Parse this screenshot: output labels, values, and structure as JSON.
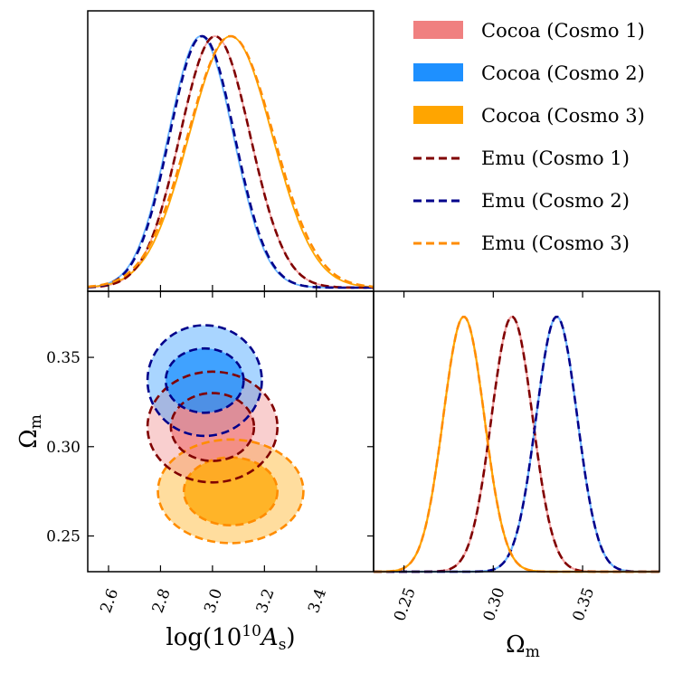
{
  "colors": {
    "cosmo1_fill": "#f08080",
    "cosmo2_fill": "#1e90ff",
    "cosmo3_fill": "#ffa500",
    "cosmo1_line": "#800000",
    "cosmo2_line": "#00008b",
    "cosmo3_line": "#ff8c00",
    "cosmo1_solid": "#f4a3a3",
    "cosmo2_solid": "#6cb4ff",
    "cosmo3_solid": "#ffa500"
  },
  "legend": [
    {
      "label": "Cocoa (Cosmo 1)",
      "kind": "patch",
      "color": "#f08080"
    },
    {
      "label": "Cocoa (Cosmo 2)",
      "kind": "patch",
      "color": "#1e90ff"
    },
    {
      "label": "Cocoa (Cosmo 3)",
      "kind": "patch",
      "color": "#ffa500"
    },
    {
      "label": "Emu (Cosmo 1)",
      "kind": "dashed",
      "color": "#800000"
    },
    {
      "label": "Emu (Cosmo 2)",
      "kind": "dashed",
      "color": "#00008b"
    },
    {
      "label": "Emu (Cosmo 3)",
      "kind": "dashed",
      "color": "#ff8c00"
    }
  ],
  "chart_data": [
    {
      "type": "line",
      "panel": "1D marginal of log(10^10 A_s)",
      "xlim": [
        2.52,
        3.62
      ],
      "series": [
        {
          "name": "Cocoa (Cosmo 1)",
          "mean": 3.01,
          "sigma": 0.135
        },
        {
          "name": "Cocoa (Cosmo 2)",
          "mean": 2.955,
          "sigma": 0.125
        },
        {
          "name": "Cocoa (Cosmo 3)",
          "mean": 3.07,
          "sigma": 0.16
        },
        {
          "name": "Emu (Cosmo 1)",
          "mean": 3.01,
          "sigma": 0.135
        },
        {
          "name": "Emu (Cosmo 2)",
          "mean": 2.96,
          "sigma": 0.125
        },
        {
          "name": "Emu (Cosmo 3)",
          "mean": 3.07,
          "sigma": 0.165
        }
      ]
    },
    {
      "type": "area",
      "panel": "2D contours Omega_m vs log(10^10 A_s)",
      "xlabel": "log(10^{10}A_s)",
      "ylabel": "Ω_m",
      "xlim": [
        2.52,
        3.62
      ],
      "ylim": [
        0.23,
        0.387
      ],
      "xticks": [
        "2.6",
        "2.8",
        "3.0",
        "3.2",
        "3.4"
      ],
      "yticks": [
        "0.25",
        "0.30",
        "0.35"
      ],
      "contours": [
        {
          "name": "Cosmo 1",
          "center": [
            3.0,
            0.311
          ],
          "inner": [
            0.16,
            0.019
          ],
          "outer": [
            0.25,
            0.031
          ]
        },
        {
          "name": "Cosmo 2",
          "center": [
            2.97,
            0.337
          ],
          "inner": [
            0.15,
            0.018
          ],
          "outer": [
            0.22,
            0.031
          ]
        },
        {
          "name": "Cosmo 3",
          "center": [
            3.07,
            0.275
          ],
          "inner": [
            0.18,
            0.019
          ],
          "outer": [
            0.28,
            0.029
          ]
        }
      ]
    },
    {
      "type": "line",
      "panel": "1D marginal of Omega_m",
      "xlabel": "Ω_m",
      "xlim": [
        0.233,
        0.393
      ],
      "xticks": [
        "0.25",
        "0.30",
        "0.35"
      ],
      "series": [
        {
          "name": "Cocoa (Cosmo 1)",
          "mean": 0.3105,
          "sigma": 0.0115
        },
        {
          "name": "Cocoa (Cosmo 2)",
          "mean": 0.3355,
          "sigma": 0.0115
        },
        {
          "name": "Cocoa (Cosmo 3)",
          "mean": 0.2835,
          "sigma": 0.0115
        },
        {
          "name": "Emu (Cosmo 1)",
          "mean": 0.3105,
          "sigma": 0.0115
        },
        {
          "name": "Emu (Cosmo 2)",
          "mean": 0.3355,
          "sigma": 0.0115
        },
        {
          "name": "Emu (Cosmo 3)",
          "mean": 0.2835,
          "sigma": 0.0115
        }
      ]
    }
  ]
}
